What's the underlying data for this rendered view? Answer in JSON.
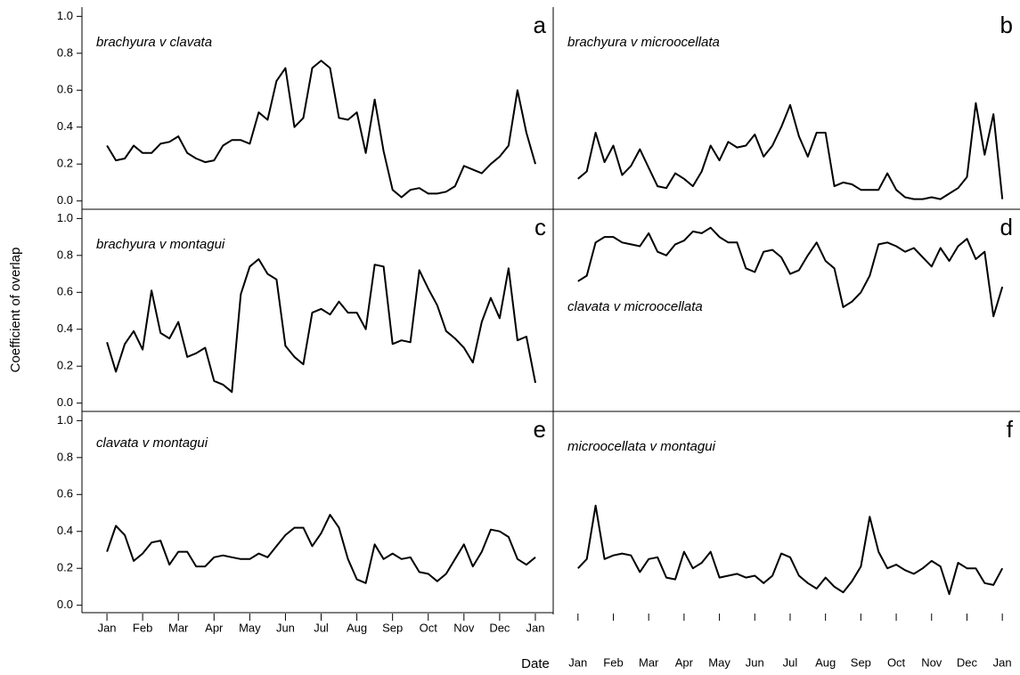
{
  "axis_labels": {
    "x": "Date",
    "y": "Coefficient of overlap"
  },
  "chart_data": [
    {
      "type": "line",
      "panel": "a",
      "title": "brachyura v clavata",
      "color": "#000000",
      "x": [
        0,
        0.25,
        0.5,
        0.75,
        1,
        1.25,
        1.5,
        1.75,
        2,
        2.25,
        2.5,
        2.75,
        3,
        3.25,
        3.5,
        3.75,
        4,
        4.25,
        4.5,
        4.75,
        5,
        5.25,
        5.5,
        5.75,
        6,
        6.25,
        6.5,
        6.75,
        7,
        7.25,
        7.5,
        7.75,
        8,
        8.25,
        8.5,
        8.75,
        9,
        9.25,
        9.5,
        9.75,
        10,
        10.25,
        10.5,
        10.75,
        11,
        11.25,
        11.5,
        11.75,
        12
      ],
      "values": [
        0.3,
        0.22,
        0.23,
        0.3,
        0.26,
        0.26,
        0.31,
        0.32,
        0.35,
        0.26,
        0.23,
        0.21,
        0.22,
        0.3,
        0.33,
        0.33,
        0.31,
        0.48,
        0.44,
        0.65,
        0.72,
        0.4,
        0.45,
        0.72,
        0.76,
        0.72,
        0.45,
        0.44,
        0.48,
        0.26,
        0.55,
        0.27,
        0.06,
        0.02,
        0.06,
        0.07,
        0.04,
        0.04,
        0.05,
        0.08,
        0.19,
        0.17,
        0.15,
        0.2,
        0.24,
        0.3,
        0.6,
        0.37,
        0.2
      ],
      "xlim": [
        -0.7,
        12.5
      ],
      "ylim": [
        -0.045,
        1.05
      ],
      "yticks": [
        {
          "value": 0,
          "label": "0.0"
        },
        0.2,
        0.4,
        0.6,
        0.8,
        {
          "value": 1,
          "label": "1.0"
        }
      ]
    },
    {
      "type": "line",
      "panel": "b",
      "title": "brachyura v microocellata",
      "color": "#000000",
      "x": [
        0,
        0.25,
        0.5,
        0.75,
        1,
        1.25,
        1.5,
        1.75,
        2,
        2.25,
        2.5,
        2.75,
        3,
        3.25,
        3.5,
        3.75,
        4,
        4.25,
        4.5,
        4.75,
        5,
        5.25,
        5.5,
        5.75,
        6,
        6.25,
        6.5,
        6.75,
        7,
        7.25,
        7.5,
        7.75,
        8,
        8.25,
        8.5,
        8.75,
        9,
        9.25,
        9.5,
        9.75,
        10,
        10.25,
        10.5,
        10.75,
        11,
        11.25,
        11.5,
        11.75,
        12
      ],
      "values": [
        0.12,
        0.16,
        0.37,
        0.21,
        0.3,
        0.14,
        0.19,
        0.28,
        0.18,
        0.08,
        0.07,
        0.15,
        0.12,
        0.08,
        0.16,
        0.3,
        0.22,
        0.32,
        0.29,
        0.3,
        0.36,
        0.24,
        0.3,
        0.4,
        0.52,
        0.35,
        0.24,
        0.37,
        0.37,
        0.08,
        0.1,
        0.09,
        0.06,
        0.06,
        0.06,
        0.15,
        0.06,
        0.02,
        0.01,
        0.01,
        0.02,
        0.01,
        0.04,
        0.07,
        0.13,
        0.53,
        0.25,
        0.47,
        0.01
      ],
      "xlim": [
        -0.7,
        12.5
      ],
      "ylim": [
        -0.045,
        1.05
      ]
    },
    {
      "type": "line",
      "panel": "c",
      "title": "brachyura v montagui",
      "color": "#000000",
      "x": [
        0,
        0.25,
        0.5,
        0.75,
        1,
        1.25,
        1.5,
        1.75,
        2,
        2.25,
        2.5,
        2.75,
        3,
        3.25,
        3.5,
        3.75,
        4,
        4.25,
        4.5,
        4.75,
        5,
        5.25,
        5.5,
        5.75,
        6,
        6.25,
        6.5,
        6.75,
        7,
        7.25,
        7.5,
        7.75,
        8,
        8.25,
        8.5,
        8.75,
        9,
        9.25,
        9.5,
        9.75,
        10,
        10.25,
        10.5,
        10.75,
        11,
        11.25,
        11.5,
        11.75,
        12
      ],
      "values": [
        0.33,
        0.17,
        0.32,
        0.39,
        0.29,
        0.61,
        0.38,
        0.35,
        0.44,
        0.25,
        0.27,
        0.3,
        0.12,
        0.1,
        0.06,
        0.59,
        0.74,
        0.78,
        0.7,
        0.67,
        0.31,
        0.25,
        0.21,
        0.49,
        0.51,
        0.48,
        0.55,
        0.49,
        0.49,
        0.4,
        0.75,
        0.74,
        0.32,
        0.34,
        0.33,
        0.72,
        0.62,
        0.53,
        0.39,
        0.35,
        0.3,
        0.22,
        0.44,
        0.57,
        0.46,
        0.73,
        0.34,
        0.36,
        0.11
      ],
      "xlim": [
        -0.7,
        12.5
      ],
      "ylim": [
        -0.045,
        1.05
      ],
      "yticks": [
        {
          "value": 0,
          "label": "0.0"
        },
        0.2,
        0.4,
        0.6,
        0.8,
        {
          "value": 1,
          "label": "1.0"
        }
      ]
    },
    {
      "type": "line",
      "panel": "d",
      "title": "clavata v microocellata",
      "color": "#000000",
      "x": [
        0,
        0.25,
        0.5,
        0.75,
        1,
        1.25,
        1.5,
        1.75,
        2,
        2.25,
        2.5,
        2.75,
        3,
        3.25,
        3.5,
        3.75,
        4,
        4.25,
        4.5,
        4.75,
        5,
        5.25,
        5.5,
        5.75,
        6,
        6.25,
        6.5,
        6.75,
        7,
        7.25,
        7.5,
        7.75,
        8,
        8.25,
        8.5,
        8.75,
        9,
        9.25,
        9.5,
        9.75,
        10,
        10.25,
        10.5,
        10.75,
        11,
        11.25,
        11.5,
        11.75,
        12
      ],
      "values": [
        0.66,
        0.69,
        0.87,
        0.9,
        0.9,
        0.87,
        0.86,
        0.85,
        0.92,
        0.82,
        0.8,
        0.86,
        0.88,
        0.93,
        0.92,
        0.95,
        0.9,
        0.87,
        0.87,
        0.73,
        0.71,
        0.82,
        0.83,
        0.79,
        0.7,
        0.72,
        0.8,
        0.87,
        0.77,
        0.73,
        0.52,
        0.55,
        0.6,
        0.69,
        0.86,
        0.87,
        0.85,
        0.82,
        0.84,
        0.79,
        0.74,
        0.84,
        0.77,
        0.85,
        0.89,
        0.78,
        0.82,
        0.47,
        0.63
      ],
      "xlim": [
        -0.7,
        12.5
      ],
      "ylim": [
        -0.045,
        1.05
      ]
    },
    {
      "type": "line",
      "panel": "e",
      "title": "clavata v montagui",
      "color": "#000000",
      "x": [
        0,
        0.25,
        0.5,
        0.75,
        1,
        1.25,
        1.5,
        1.75,
        2,
        2.25,
        2.5,
        2.75,
        3,
        3.25,
        3.5,
        3.75,
        4,
        4.25,
        4.5,
        4.75,
        5,
        5.25,
        5.5,
        5.75,
        6,
        6.25,
        6.5,
        6.75,
        7,
        7.25,
        7.5,
        7.75,
        8,
        8.25,
        8.5,
        8.75,
        9,
        9.25,
        9.5,
        9.75,
        10,
        10.25,
        10.5,
        10.75,
        11,
        11.25,
        11.5,
        11.75,
        12
      ],
      "values": [
        0.29,
        0.43,
        0.38,
        0.24,
        0.28,
        0.34,
        0.35,
        0.22,
        0.29,
        0.29,
        0.21,
        0.21,
        0.26,
        0.27,
        0.26,
        0.25,
        0.25,
        0.28,
        0.26,
        0.32,
        0.38,
        0.42,
        0.42,
        0.32,
        0.39,
        0.49,
        0.42,
        0.25,
        0.14,
        0.12,
        0.33,
        0.25,
        0.28,
        0.25,
        0.26,
        0.18,
        0.17,
        0.13,
        0.17,
        0.25,
        0.33,
        0.21,
        0.29,
        0.41,
        0.4,
        0.37,
        0.25,
        0.22,
        0.26
      ],
      "xlim": [
        -0.7,
        12.5
      ],
      "ylim": [
        -0.045,
        1.05
      ],
      "yticks": [
        {
          "value": 0,
          "label": "0.0"
        },
        0.2,
        0.4,
        0.6,
        0.8,
        {
          "value": 1,
          "label": "1.0"
        }
      ],
      "xticks": [
        {
          "value": 0,
          "label": "Jan"
        },
        {
          "value": 1,
          "label": "Feb"
        },
        {
          "value": 2,
          "label": "Mar"
        },
        {
          "value": 3,
          "label": "Apr"
        },
        {
          "value": 4,
          "label": "May"
        },
        {
          "value": 5,
          "label": "Jun"
        },
        {
          "value": 6,
          "label": "Jul"
        },
        {
          "value": 7,
          "label": "Aug"
        },
        {
          "value": 8,
          "label": "Sep"
        },
        {
          "value": 9,
          "label": "Oct"
        },
        {
          "value": 10,
          "label": "Nov"
        },
        {
          "value": 11,
          "label": "Dec"
        },
        {
          "value": 12,
          "label": "Jan"
        }
      ]
    },
    {
      "type": "line",
      "panel": "f",
      "title": "microocellata v montagui",
      "color": "#000000",
      "x": [
        0,
        0.25,
        0.5,
        0.75,
        1,
        1.25,
        1.5,
        1.75,
        2,
        2.25,
        2.5,
        2.75,
        3,
        3.25,
        3.5,
        3.75,
        4,
        4.25,
        4.5,
        4.75,
        5,
        5.25,
        5.5,
        5.75,
        6,
        6.25,
        6.5,
        6.75,
        7,
        7.25,
        7.5,
        7.75,
        8,
        8.25,
        8.5,
        8.75,
        9,
        9.25,
        9.5,
        9.75,
        10,
        10.25,
        10.5,
        10.75,
        11,
        11.25,
        11.5,
        11.75,
        12
      ],
      "values": [
        0.2,
        0.25,
        0.54,
        0.25,
        0.27,
        0.28,
        0.27,
        0.18,
        0.25,
        0.26,
        0.15,
        0.14,
        0.29,
        0.2,
        0.23,
        0.29,
        0.15,
        0.16,
        0.17,
        0.15,
        0.16,
        0.12,
        0.16,
        0.28,
        0.26,
        0.16,
        0.12,
        0.09,
        0.15,
        0.1,
        0.07,
        0.13,
        0.21,
        0.48,
        0.29,
        0.2,
        0.22,
        0.19,
        0.17,
        0.2,
        0.24,
        0.21,
        0.06,
        0.23,
        0.2,
        0.2,
        0.12,
        0.11,
        0.2
      ],
      "xlim": [
        -0.7,
        12.5
      ],
      "ylim": [
        -0.045,
        1.05
      ],
      "xticks": [
        {
          "value": 0,
          "label": "Jan"
        },
        {
          "value": 1,
          "label": "Feb"
        },
        {
          "value": 2,
          "label": "Mar"
        },
        {
          "value": 3,
          "label": "Apr"
        },
        {
          "value": 4,
          "label": "May"
        },
        {
          "value": 5,
          "label": "Jun"
        },
        {
          "value": 6,
          "label": "Jul"
        },
        {
          "value": 7,
          "label": "Aug"
        },
        {
          "value": 8,
          "label": "Sep"
        },
        {
          "value": 9,
          "label": "Oct"
        },
        {
          "value": 10,
          "label": "Nov"
        },
        {
          "value": 11,
          "label": "Dec"
        },
        {
          "value": 12,
          "label": "Jan"
        }
      ]
    }
  ]
}
